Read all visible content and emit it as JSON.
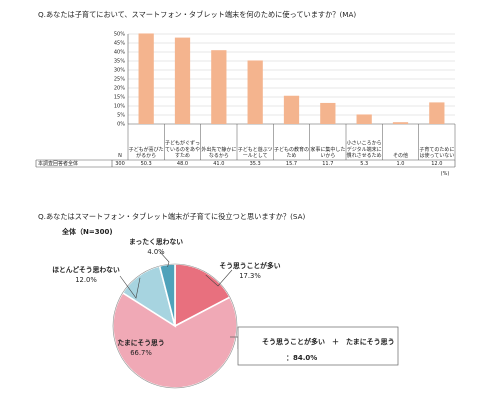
{
  "chart_data": [
    {
      "type": "bar",
      "title": "Q.あなたは子育てにおいて、スマートフォン・タブレット端末を何のために使っていますか？(MA)",
      "categories": [
        "子どもが喜びたがるから",
        "子どもがぐずっているのをあやすため",
        "外出先で静かになるから",
        "子どもと遊ぶツールとして",
        "子どもの教育のため",
        "家事に集中したいから",
        "小さいころからデジタル端末に慣れさせるため",
        "その他",
        "子育てのためには使っていない"
      ],
      "values": [
        50.3,
        48.0,
        41.0,
        35.3,
        15.7,
        11.7,
        5.3,
        1.0,
        12.0
      ],
      "value_labels": [
        "50.3",
        "48.0",
        "41.0",
        "35.3",
        "15.7",
        "11.7",
        "5.3",
        "1.0",
        "12.0"
      ],
      "ylim": [
        0,
        50
      ],
      "yticks": [
        "0%",
        "5%",
        "10%",
        "15%",
        "20%",
        "25%",
        "30%",
        "35%",
        "40%",
        "45%",
        "50%"
      ],
      "grid": true,
      "color": "#f4b48e",
      "table": {
        "n_header": "N",
        "row_label": "本調査回答者全体",
        "n": "300",
        "unit": "(%)"
      }
    },
    {
      "type": "pie",
      "title": "Q.あなたはスマートフォン・タブレット端末が子育てに役立つと思いますか？(SA)",
      "subtitle": "全体（N=300)",
      "labels": [
        "そう思うことが多い",
        "たまにそう思う",
        "ほとんどそう思わない",
        "まったく思わない"
      ],
      "values": [
        17.3,
        66.7,
        12.0,
        4.0
      ],
      "value_labels": [
        "17.3%",
        "66.7%",
        "12.0%",
        "4.0%"
      ],
      "colors": [
        "#e8707e",
        "#f0a9b6",
        "#a7d4e0",
        "#4fa2ba"
      ],
      "annotation": {
        "label": "そう思うことが多い　＋　たまにそう思う",
        "value": "：84.0%"
      }
    }
  ]
}
